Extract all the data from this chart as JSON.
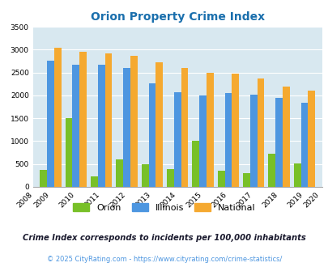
{
  "title": "Orion Property Crime Index",
  "years": [
    2008,
    2009,
    2010,
    2011,
    2012,
    2013,
    2014,
    2015,
    2016,
    2017,
    2018,
    2019,
    2020
  ],
  "orion": [
    0,
    375,
    1500,
    225,
    600,
    490,
    390,
    1010,
    355,
    295,
    720,
    510,
    0
  ],
  "illinois": [
    0,
    2750,
    2670,
    2670,
    2590,
    2270,
    2060,
    2000,
    2050,
    2010,
    1940,
    1840,
    0
  ],
  "national": [
    0,
    3040,
    2960,
    2910,
    2860,
    2730,
    2600,
    2500,
    2470,
    2370,
    2200,
    2110,
    0
  ],
  "orion_color": "#78c028",
  "illinois_color": "#4d96e0",
  "national_color": "#f5a930",
  "bg_color": "#d8e8f0",
  "ylim": [
    0,
    3500
  ],
  "yticks": [
    0,
    500,
    1000,
    1500,
    2000,
    2500,
    3000,
    3500
  ],
  "subtitle": "Crime Index corresponds to incidents per 100,000 inhabitants",
  "footer": "© 2025 CityRating.com - https://www.cityrating.com/crime-statistics/",
  "title_color": "#1a6fad",
  "subtitle_color": "#1a1a2e",
  "footer_color": "#4d96e0"
}
